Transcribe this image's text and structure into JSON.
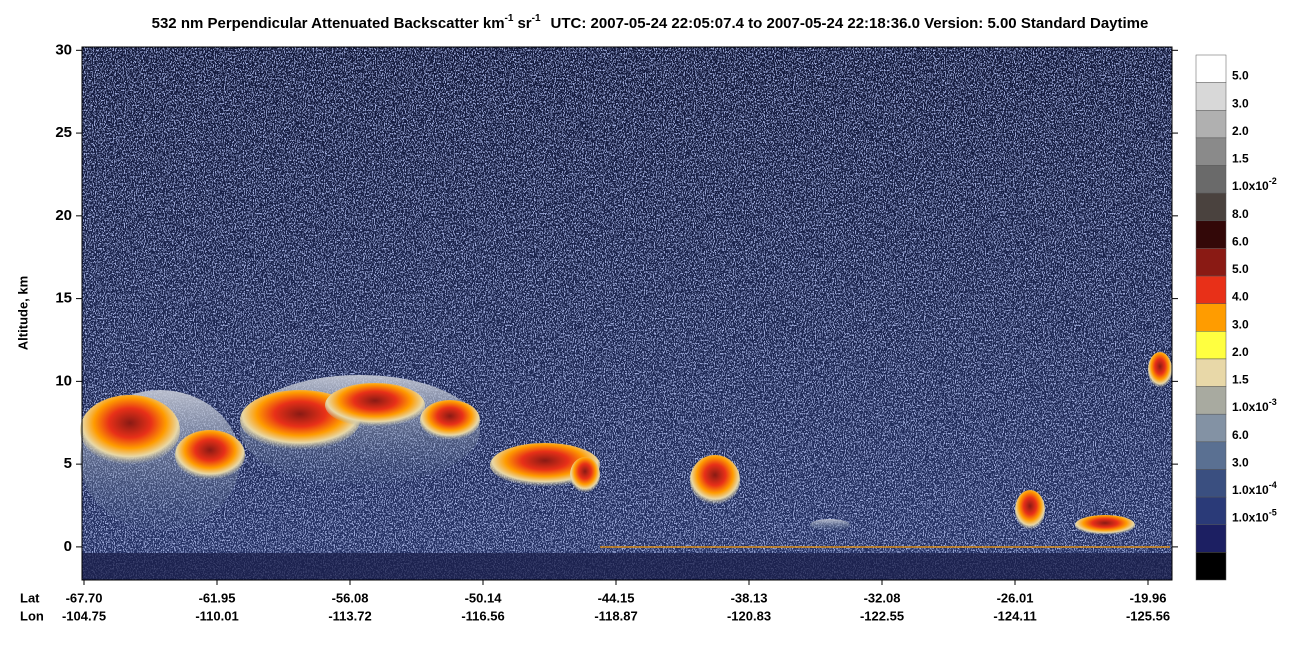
{
  "chart_data": {
    "type": "lidar-curtain",
    "title": {
      "main": "532 nm Perpendicular Attenuated Backscatter km",
      "unit_exp": "-1",
      "unit2": "sr",
      "unit2_exp": "-1",
      "info": "UTC: 2007-05-24 22:05:07.4 to 2007-05-24 22:18:36.0  Version: 5.00 Standard Daytime"
    },
    "y_label": "Altitude, km",
    "ylim": [
      -2,
      30.2
    ],
    "yticks": [
      0,
      5,
      10,
      15,
      20,
      25,
      30
    ],
    "x_row_labels": [
      "Lat",
      "Lon"
    ],
    "lat": [
      "-67.70",
      "-61.95",
      "-56.08",
      "-50.14",
      "-44.15",
      "-38.13",
      "-32.08",
      "-26.01",
      "-19.96"
    ],
    "lon": [
      "-104.75",
      "-110.01",
      "-113.72",
      "-116.56",
      "-118.87",
      "-120.83",
      "-122.55",
      "-124.11",
      "-125.56"
    ],
    "colorbar": {
      "colors": [
        "#ffffff",
        "#d8d8d8",
        "#b0b0b0",
        "#8a8a8a",
        "#6a6a6a",
        "#4a423e",
        "#330808",
        "#8a1a14",
        "#e83018",
        "#ff9c00",
        "#ffff40",
        "#e8d8a8",
        "#a8aaa0",
        "#8392a4",
        "#5a7092",
        "#3a4f80",
        "#2a3a78",
        "#1c1f62",
        "#000000"
      ],
      "labels": [
        {
          "text": "5.0"
        },
        {
          "text": "3.0"
        },
        {
          "text": "2.0"
        },
        {
          "text": "1.5"
        },
        {
          "text": "1.0x10",
          "sup": "-2"
        },
        {
          "text": "8.0"
        },
        {
          "text": "6.0"
        },
        {
          "text": "5.0"
        },
        {
          "text": "4.0"
        },
        {
          "text": "3.0"
        },
        {
          "text": "2.0"
        },
        {
          "text": "1.5"
        },
        {
          "text": "1.0x10",
          "sup": "-3"
        },
        {
          "text": "6.0"
        },
        {
          "text": "3.0"
        },
        {
          "text": "1.0x10",
          "sup": "-4"
        },
        {
          "text": "1.0x10",
          "sup": "-5"
        }
      ]
    }
  }
}
